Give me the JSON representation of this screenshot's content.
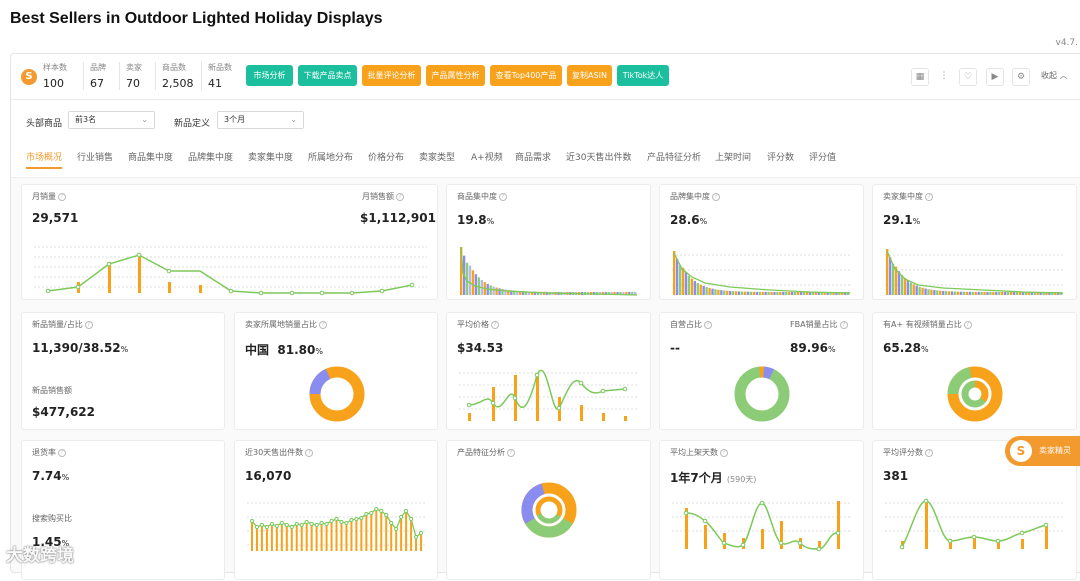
{
  "page_title": "Best Sellers in Outdoor Lighted Holiday Displays",
  "version": "v4.7.",
  "logo": "S",
  "stats": [
    {
      "label": "样本数",
      "value": "100"
    },
    {
      "label": "品牌",
      "value": "67"
    },
    {
      "label": "卖家",
      "value": "70"
    },
    {
      "label": "商品数",
      "value": "2,508"
    },
    {
      "label": "新品数",
      "value": "41"
    }
  ],
  "action_buttons": [
    "市场分析",
    "下载产品卖点",
    "批量评论分析",
    "产品属性分析",
    "查看Top400产品",
    "复制ASIN",
    "TikTok达人"
  ],
  "toolbar_icons": [
    "grid-icon",
    "more-icon",
    "heart-icon",
    "video-icon",
    "settings-icon"
  ],
  "collapse_label": "收起 ︿",
  "filters": {
    "head_label": "头部商品",
    "head_value": "前3名",
    "new_label": "新品定义",
    "new_value": "3个月"
  },
  "tabs": [
    "市场概况",
    "行业销售",
    "商品集中度",
    "品牌集中度",
    "卖家集中度",
    "所属地分布",
    "价格分布",
    "卖家类型",
    "A+视频",
    "商品需求",
    "近30天售出件数",
    "产品特征分析",
    "上架时间",
    "评分数",
    "评分值"
  ],
  "cards": {
    "monthly_sales": {
      "label": "月销量",
      "value": "29,571",
      "label2": "月销售额",
      "value2": "$1,112,901"
    },
    "product_conc": {
      "label": "商品集中度",
      "value": "19.8",
      "unit": "%"
    },
    "brand_conc": {
      "label": "品牌集中度",
      "value": "28.6",
      "unit": "%"
    },
    "seller_conc": {
      "label": "卖家集中度",
      "value": "29.1",
      "unit": "%"
    },
    "new_sales": {
      "label": "新品销量/占比",
      "value": "11,390/38.52",
      "unit": "%",
      "label2": "新品销售额",
      "value2": "$477,622"
    },
    "seller_loc": {
      "label": "卖家所属地销量占比",
      "region": "中国",
      "value": "81.80",
      "unit": "%"
    },
    "avg_price": {
      "label": "平均价格",
      "value": "$34.53"
    },
    "self_op": {
      "label": "自营占比",
      "value": "--",
      "label2": "FBA销量占比",
      "value2": "89.96",
      "unit": "%"
    },
    "aplus": {
      "label": "有A+ 有视频销量占比",
      "value": "65.28",
      "unit": "%"
    },
    "return_rate": {
      "label": "退货率",
      "value": "7.74",
      "unit": "%",
      "label2": "搜索购买比",
      "value2": "1.45",
      "unit2": "%"
    },
    "sold30": {
      "label": "近30天售出件数",
      "value": "16,070"
    },
    "feature": {
      "label": "产品特征分析"
    },
    "avg_listed": {
      "label": "平均上架天数",
      "value": "1年7个月",
      "sub": "(590天)"
    },
    "avg_rating": {
      "label": "平均评分数",
      "value": "381"
    }
  },
  "float_button": "卖家精灵",
  "float_icon": "S",
  "watermark": "大数跨境",
  "colors": {
    "accent": "#f39a2e",
    "green": "#1bbf9d",
    "bar": "#f7a21a",
    "line": "#7cc95a",
    "purple": "#8b8cf0"
  }
}
